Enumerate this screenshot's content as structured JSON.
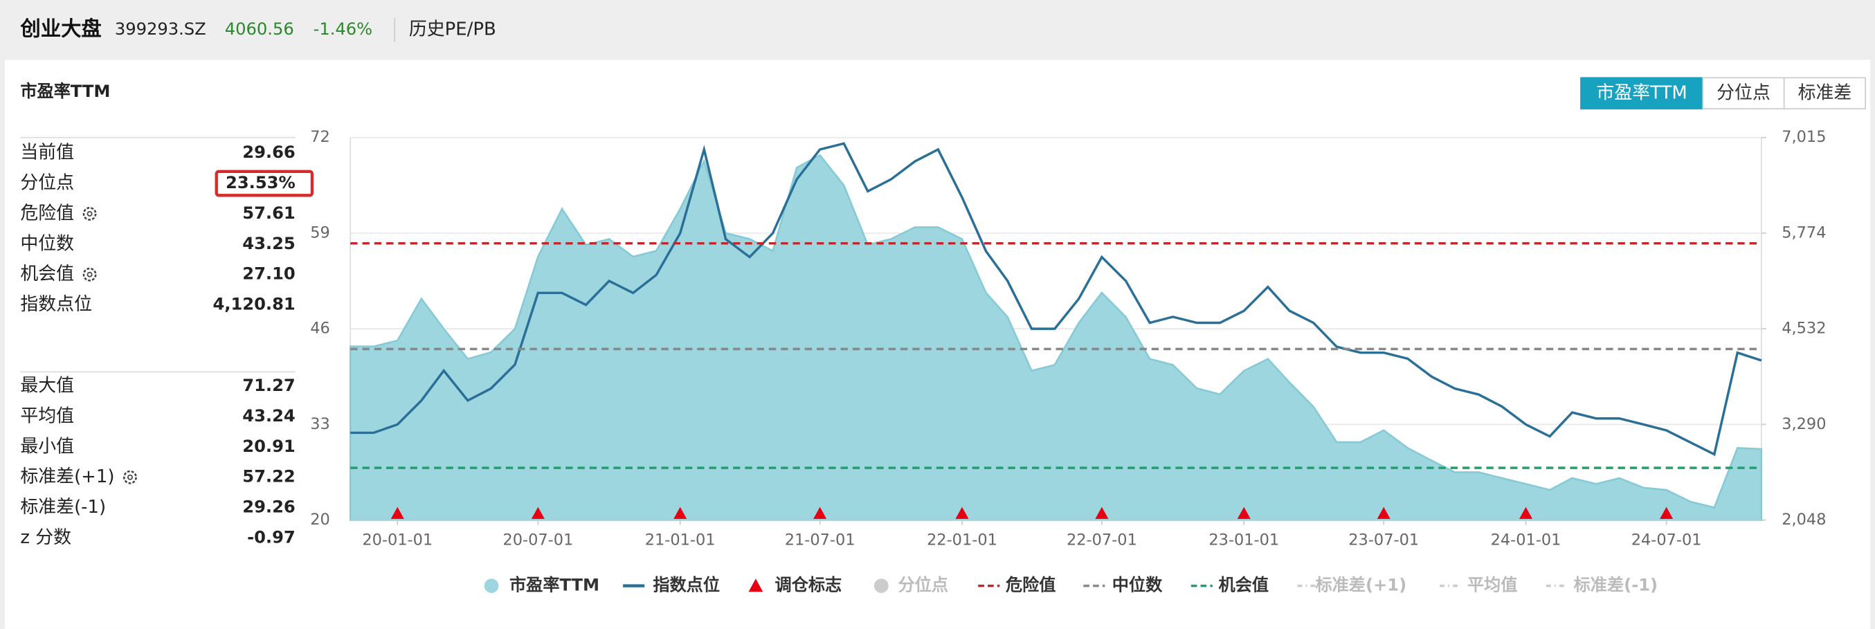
{
  "header": {
    "title": "创业大盘",
    "code": "399293.SZ",
    "price": "4060.56",
    "change": "-1.46%",
    "tab": "历史PE/PB"
  },
  "panel_title": "市盈率TTM",
  "buttons": [
    {
      "label": "市盈率TTM",
      "active": true
    },
    {
      "label": "分位点",
      "active": false
    },
    {
      "label": "标准差",
      "active": false
    }
  ],
  "stats": {
    "top": [
      {
        "label": "当前值",
        "value": "29.66"
      },
      {
        "label": "分位点",
        "value": "23.53%",
        "highlight": true
      },
      {
        "label": "危险值",
        "value": "57.61",
        "settings_icon": true
      },
      {
        "label": "中位数",
        "value": "43.25"
      },
      {
        "label": "机会值",
        "value": "27.10",
        "settings_icon": true
      },
      {
        "label": "指数点位",
        "value": "4,120.81"
      }
    ],
    "bottom": [
      {
        "label": "最大值",
        "value": "71.27"
      },
      {
        "label": "平均值",
        "value": "43.24"
      },
      {
        "label": "最小值",
        "value": "20.91"
      },
      {
        "label": "标准差(+1)",
        "value": "57.22",
        "settings_icon": true
      },
      {
        "label": "标准差(-1)",
        "value": "29.26"
      },
      {
        "label": "z 分数",
        "value": "-0.97"
      }
    ]
  },
  "chart_data": {
    "type": "line",
    "x": [
      "19-11-01",
      "19-12-01",
      "20-01-01",
      "20-02-01",
      "20-03-01",
      "20-04-01",
      "20-05-01",
      "20-06-01",
      "20-07-01",
      "20-08-01",
      "20-09-01",
      "20-10-01",
      "20-11-01",
      "20-12-01",
      "21-01-01",
      "21-02-01",
      "21-03-01",
      "21-04-01",
      "21-05-01",
      "21-06-01",
      "21-07-01",
      "21-08-01",
      "21-09-01",
      "21-10-01",
      "21-11-01",
      "21-12-01",
      "22-01-01",
      "22-02-01",
      "22-03-01",
      "22-04-01",
      "22-05-01",
      "22-06-01",
      "22-07-01",
      "22-08-01",
      "22-09-01",
      "22-10-01",
      "22-11-01",
      "22-12-01",
      "23-01-01",
      "23-02-01",
      "23-03-01",
      "23-04-01",
      "23-05-01",
      "23-06-01",
      "23-07-01",
      "23-08-01",
      "23-09-01",
      "23-10-01",
      "23-11-01",
      "23-12-01",
      "24-01-01",
      "24-02-01",
      "24-03-01",
      "24-04-01",
      "24-05-01",
      "24-06-01",
      "24-07-01",
      "24-08-01",
      "24-09-01",
      "24-10-01",
      "24-11-01"
    ],
    "series": [
      {
        "name": "市盈率TTM",
        "kind": "area",
        "color": "#9dd6df",
        "stroke": "#86cad5",
        "axis": "y",
        "values": [
          43.6,
          43.6,
          44.4,
          50.1,
          46.0,
          41.9,
          42.8,
          46.0,
          55.8,
          62.3,
          57.4,
          58.2,
          55.8,
          56.6,
          62.3,
          68.8,
          59.0,
          58.2,
          56.6,
          67.9,
          69.6,
          65.5,
          57.4,
          58.2,
          59.8,
          59.8,
          58.2,
          50.9,
          47.6,
          40.3,
          41.1,
          46.8,
          50.9,
          47.6,
          41.9,
          41.1,
          37.9,
          37.1,
          40.3,
          41.9,
          38.7,
          35.4,
          30.6,
          30.6,
          32.2,
          29.8,
          28.1,
          26.5,
          26.5,
          25.7,
          24.9,
          24.1,
          25.7,
          24.9,
          25.7,
          24.4,
          24.1,
          22.5,
          21.7,
          29.8,
          29.66
        ]
      },
      {
        "name": "指数点位",
        "kind": "line",
        "color": "#2a6f97",
        "axis": "y2",
        "values": [
          3181,
          3181,
          3290,
          3600,
          3988,
          3600,
          3755,
          4066,
          4997,
          4997,
          4842,
          5152,
          4997,
          5230,
          5773,
          6860,
          5696,
          5463,
          5773,
          6472,
          6860,
          6937,
          6317,
          6472,
          6705,
          6860,
          6239,
          5540,
          5152,
          4531,
          4531,
          4920,
          5463,
          5152,
          4609,
          4687,
          4609,
          4609,
          4764,
          5075,
          4764,
          4609,
          4299,
          4221,
          4221,
          4143,
          3911,
          3755,
          3678,
          3523,
          3290,
          3135,
          3445,
          3367,
          3367,
          3290,
          3212,
          3057,
          2902,
          4221,
          4120.81
        ]
      }
    ],
    "markers": {
      "name": "调仓标志",
      "color": "#e60012",
      "x": [
        "20-01-01",
        "20-07-01",
        "21-01-01",
        "21-07-01",
        "22-01-01",
        "22-07-01",
        "23-01-01",
        "23-07-01",
        "24-01-01",
        "24-07-01"
      ]
    },
    "hidden_series": [
      {
        "name": "分位点",
        "color": "#cccccc"
      }
    ],
    "reference_lines": [
      {
        "name": "危险值",
        "value": 57.61,
        "color": "#c0282d",
        "visible": true
      },
      {
        "name": "中位数",
        "value": 43.25,
        "color": "#888888",
        "visible": true
      },
      {
        "name": "机会值",
        "value": 27.1,
        "color": "#22a06b",
        "visible": true
      },
      {
        "name": "标准差(+1)",
        "value": 57.22,
        "color": "#cccccc",
        "visible": false
      },
      {
        "name": "平均值",
        "value": 43.24,
        "color": "#cccccc",
        "visible": false
      },
      {
        "name": "标准差(-1)",
        "value": 29.26,
        "color": "#cccccc",
        "visible": false
      }
    ],
    "xlim": [
      "19-11-01",
      "24-11-01"
    ],
    "xticks": [
      "20-01-01",
      "20-07-01",
      "21-01-01",
      "21-07-01",
      "22-01-01",
      "22-07-01",
      "23-01-01",
      "23-07-01",
      "24-01-01",
      "24-07-01"
    ],
    "ylim": [
      20,
      72
    ],
    "yticks": [
      20,
      33,
      46,
      59,
      72
    ],
    "y2lim": [
      2048,
      7015
    ],
    "y2ticks": [
      {
        "value": 2048,
        "label": "2,048"
      },
      {
        "value": 3290,
        "label": "3,290"
      },
      {
        "value": 4532,
        "label": "4,532"
      },
      {
        "value": 5774,
        "label": "5,774"
      },
      {
        "value": 7015,
        "label": "7,015"
      }
    ],
    "grid": true
  }
}
